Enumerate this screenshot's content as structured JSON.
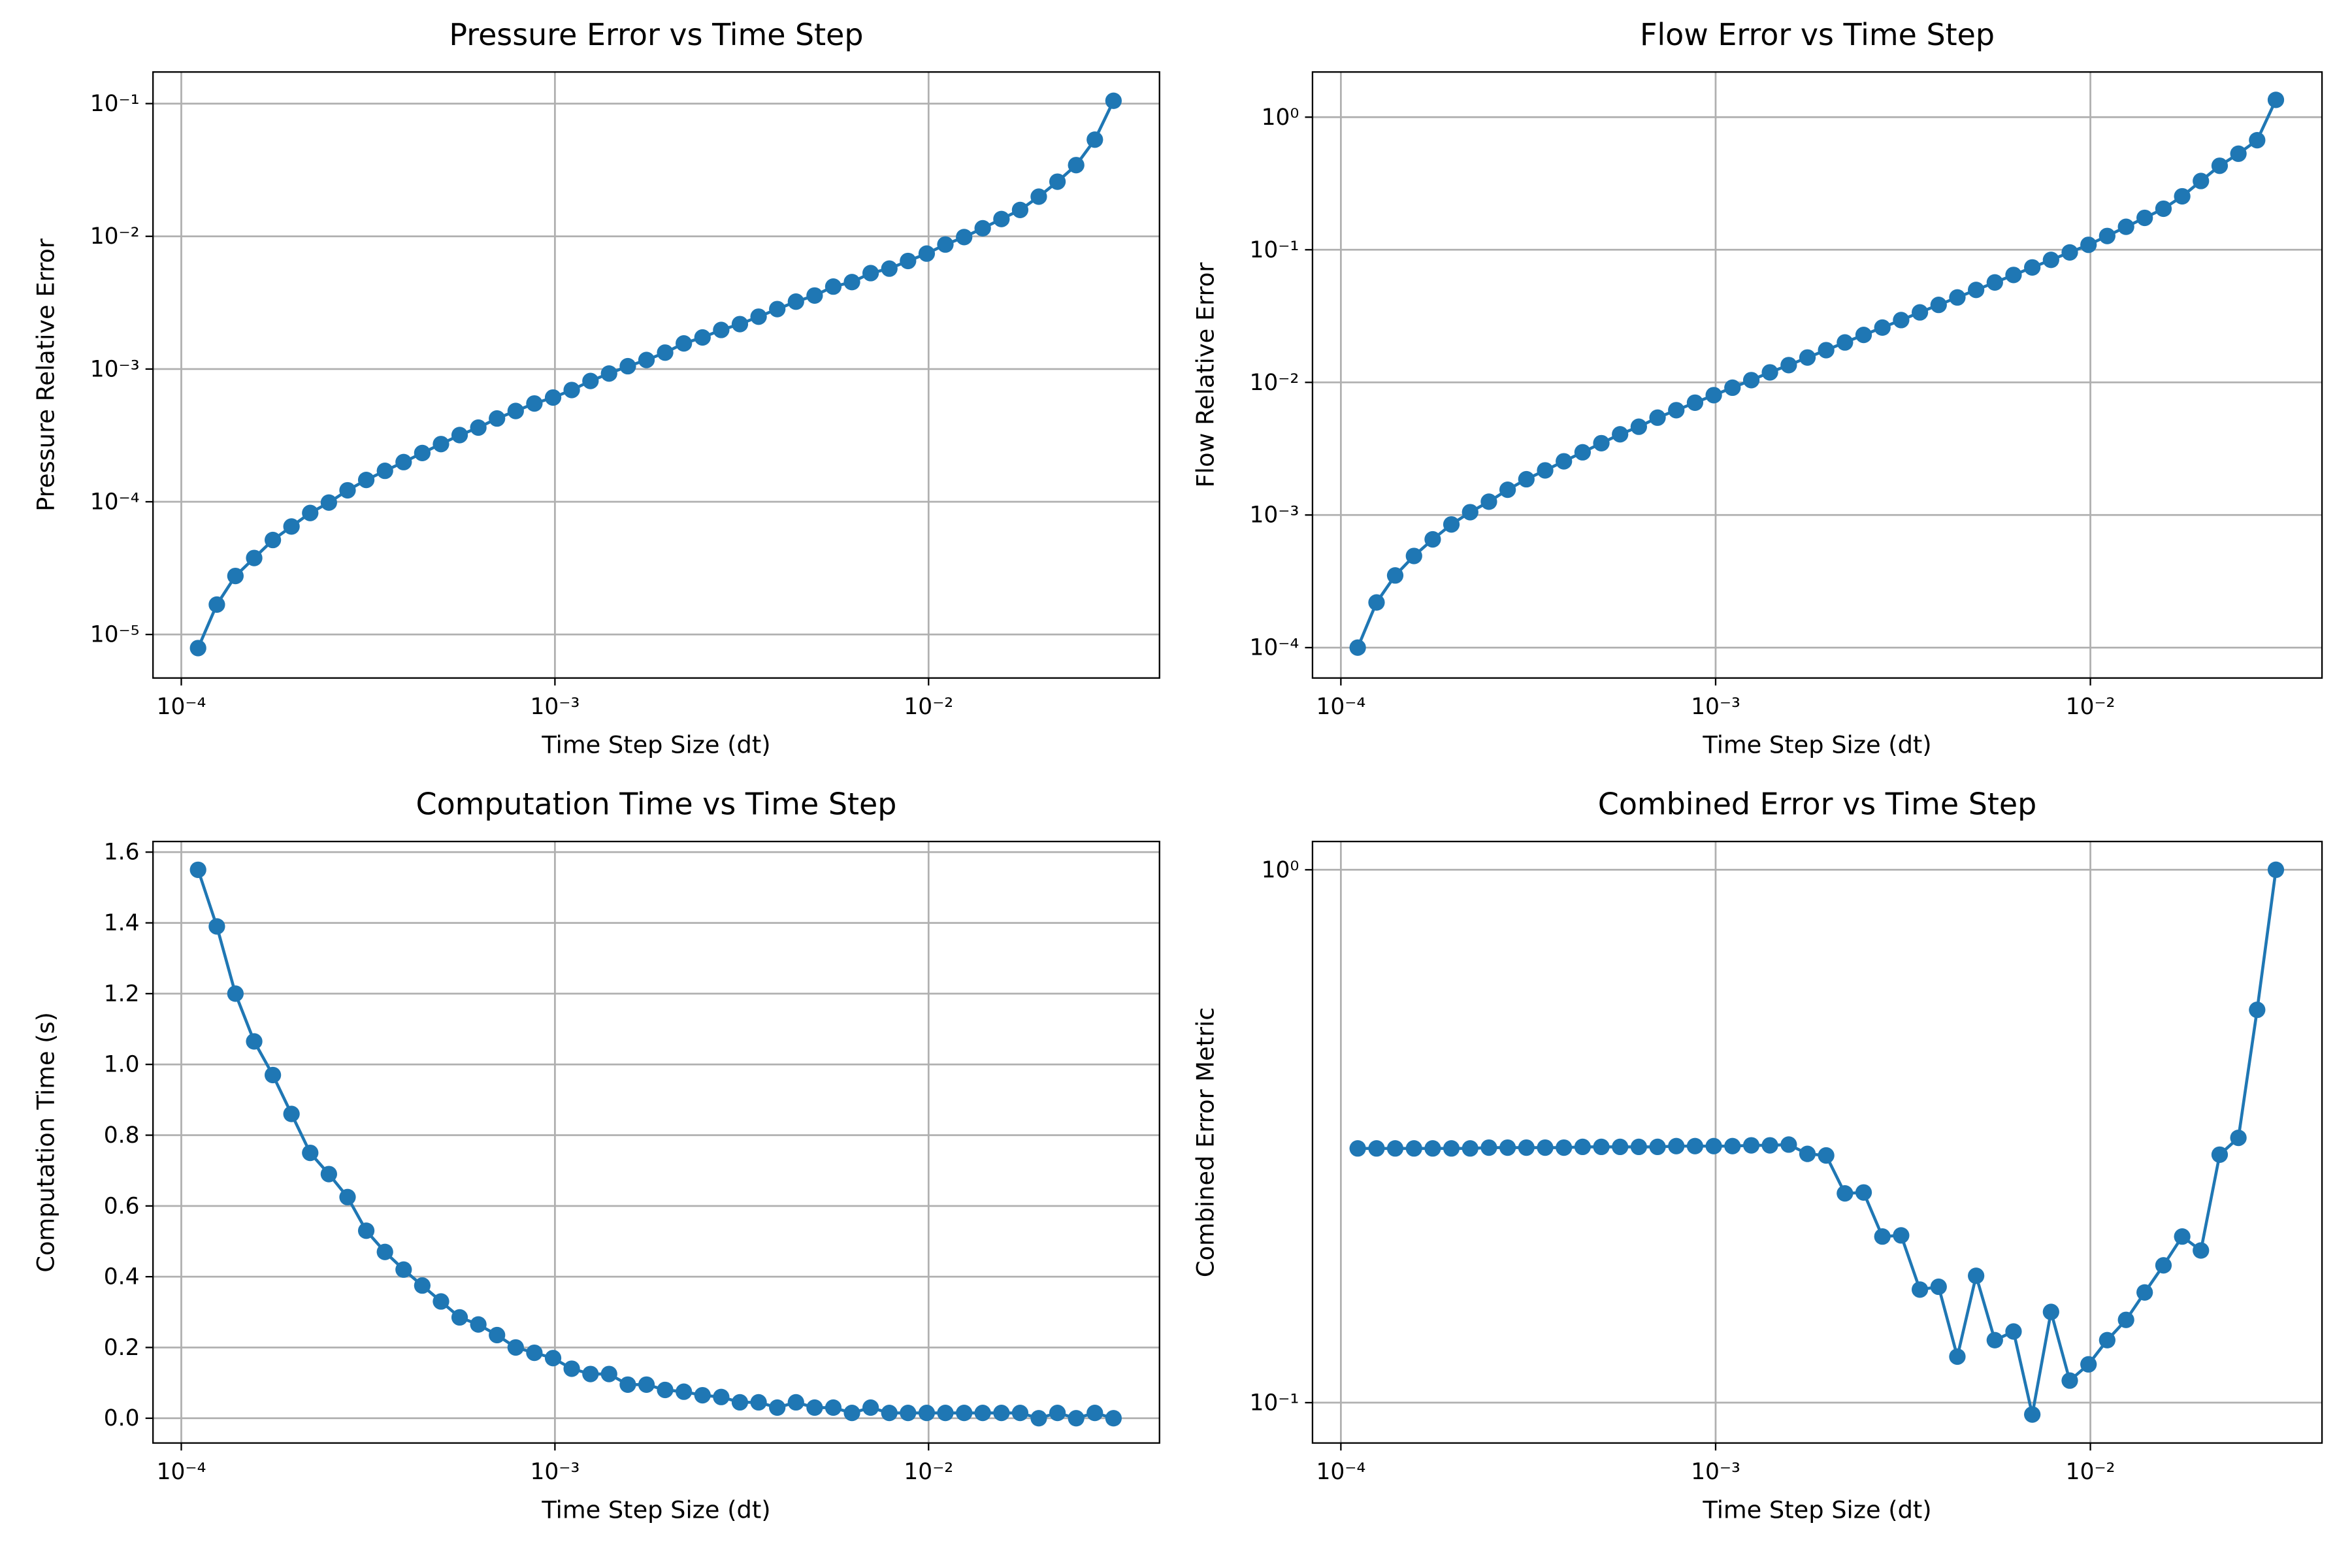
{
  "chart_data": [
    {
      "type": "line",
      "title": "Pressure Error vs Time Step",
      "xlabel": "Time Step Size (dt)",
      "ylabel": "Pressure Relative Error",
      "xscale": "log",
      "yscale": "log",
      "grid": true,
      "marker": "o",
      "x": [
        0.0001109,
        0.0001245,
        0.0001396,
        0.0001567,
        0.0001758,
        0.0001972,
        0.0002213,
        0.0002483,
        0.0002786,
        0.0003126,
        0.0003508,
        0.0003936,
        0.0004416,
        0.0004955,
        0.0005559,
        0.0006237,
        0.0006998,
        0.0007852,
        0.000881,
        0.0009886,
        0.001109,
        0.001245,
        0.001396,
        0.001567,
        0.001758,
        0.001972,
        0.002213,
        0.002483,
        0.002786,
        0.003126,
        0.003508,
        0.003936,
        0.004416,
        0.004955,
        0.005559,
        0.006237,
        0.006998,
        0.007852,
        0.00881,
        0.009886,
        0.01109,
        0.01245,
        0.01396,
        0.01567,
        0.01758,
        0.01972,
        0.02213,
        0.02483,
        0.02786,
        0.03126
      ],
      "series": [
        {
          "color": "#1f77b4",
          "values": [
            7.9e-06,
            1.68e-05,
            2.76e-05,
            3.77e-05,
            5.15e-05,
            6.51e-05,
            8.23e-05,
            9.86e-05,
            0.000122,
            0.000146,
            0.000171,
            0.000199,
            0.000233,
            0.000272,
            0.000318,
            0.000362,
            0.000424,
            0.000483,
            0.00055,
            0.00061,
            0.000695,
            0.000813,
            0.000925,
            0.00105,
            0.00117,
            0.00133,
            0.00156,
            0.00173,
            0.00197,
            0.00218,
            0.00248,
            0.00283,
            0.00322,
            0.00358,
            0.00418,
            0.00452,
            0.00528,
            0.00571,
            0.00652,
            0.00741,
            0.00867,
            0.00987,
            0.0115,
            0.0135,
            0.0158,
            0.0199,
            0.0258,
            0.0344,
            0.0535,
            0.105
          ]
        }
      ],
      "xlim": [
        8.4e-05,
        0.0415
      ],
      "ylim": [
        4.7e-06,
        0.173
      ],
      "xticks": [
        {
          "value": 0.0001,
          "label": "10⁻⁴"
        },
        {
          "value": 0.001,
          "label": "10⁻³"
        },
        {
          "value": 0.01,
          "label": "10⁻²"
        }
      ],
      "yticks": [
        {
          "value": 1e-05,
          "label": "10⁻⁵"
        },
        {
          "value": 0.0001,
          "label": "10⁻⁴"
        },
        {
          "value": 0.001,
          "label": "10⁻³"
        },
        {
          "value": 0.01,
          "label": "10⁻²"
        },
        {
          "value": 0.1,
          "label": "10⁻¹"
        }
      ]
    },
    {
      "type": "line",
      "title": "Flow Error vs Time Step",
      "xlabel": "Time Step Size (dt)",
      "ylabel": "Flow Relative Error",
      "xscale": "log",
      "yscale": "log",
      "grid": true,
      "marker": "o",
      "x": [
        0.0001109,
        0.0001245,
        0.0001396,
        0.0001567,
        0.0001758,
        0.0001972,
        0.0002213,
        0.0002483,
        0.0002786,
        0.0003126,
        0.0003508,
        0.0003936,
        0.0004416,
        0.0004955,
        0.0005559,
        0.0006237,
        0.0006998,
        0.0007852,
        0.000881,
        0.0009886,
        0.001109,
        0.001245,
        0.001396,
        0.001567,
        0.001758,
        0.001972,
        0.002213,
        0.002483,
        0.002786,
        0.003126,
        0.003508,
        0.003936,
        0.004416,
        0.004955,
        0.005559,
        0.006237,
        0.006998,
        0.007852,
        0.00881,
        0.009886,
        0.01109,
        0.01245,
        0.01396,
        0.01567,
        0.01758,
        0.01972,
        0.02213,
        0.02483,
        0.02786,
        0.03126
      ],
      "series": [
        {
          "color": "#1f77b4",
          "values": [
            0.0001,
            0.000219,
            0.00035,
            0.000491,
            0.000655,
            0.000849,
            0.00105,
            0.00126,
            0.00155,
            0.00186,
            0.00217,
            0.00254,
            0.00297,
            0.00348,
            0.00406,
            0.00463,
            0.00542,
            0.00617,
            0.00703,
            0.00801,
            0.00912,
            0.0104,
            0.0119,
            0.0135,
            0.0154,
            0.0175,
            0.02,
            0.0228,
            0.0259,
            0.0295,
            0.0337,
            0.0384,
            0.0437,
            0.0498,
            0.0567,
            0.0646,
            0.0736,
            0.0839,
            0.0955,
            0.109,
            0.127,
            0.149,
            0.174,
            0.204,
            0.253,
            0.33,
            0.43,
            0.53,
            0.67,
            1.35
          ]
        }
      ],
      "xlim": [
        8.4e-05,
        0.0415
      ],
      "ylim": [
        5.9e-05,
        2.19
      ],
      "xticks": [
        {
          "value": 0.0001,
          "label": "10⁻⁴"
        },
        {
          "value": 0.001,
          "label": "10⁻³"
        },
        {
          "value": 0.01,
          "label": "10⁻²"
        }
      ],
      "yticks": [
        {
          "value": 0.0001,
          "label": "10⁻⁴"
        },
        {
          "value": 0.001,
          "label": "10⁻³"
        },
        {
          "value": 0.01,
          "label": "10⁻²"
        },
        {
          "value": 0.1,
          "label": "10⁻¹"
        },
        {
          "value": 1,
          "label": "10⁰"
        }
      ]
    },
    {
      "type": "line",
      "title": "Computation Time vs Time Step",
      "xlabel": "Time Step Size (dt)",
      "ylabel": "Computation Time (s)",
      "xscale": "log",
      "yscale": "linear",
      "grid": true,
      "marker": "o",
      "x": [
        0.0001109,
        0.0001245,
        0.0001396,
        0.0001567,
        0.0001758,
        0.0001972,
        0.0002213,
        0.0002483,
        0.0002786,
        0.0003126,
        0.0003508,
        0.0003936,
        0.0004416,
        0.0004955,
        0.0005559,
        0.0006237,
        0.0006998,
        0.0007852,
        0.000881,
        0.0009886,
        0.001109,
        0.001245,
        0.001396,
        0.001567,
        0.001758,
        0.001972,
        0.002213,
        0.002483,
        0.002786,
        0.003126,
        0.003508,
        0.003936,
        0.004416,
        0.004955,
        0.005559,
        0.006237,
        0.006998,
        0.007852,
        0.00881,
        0.009886,
        0.01109,
        0.01245,
        0.01396,
        0.01567,
        0.01758,
        0.01972,
        0.02213,
        0.02483,
        0.02786,
        0.03126
      ],
      "series": [
        {
          "color": "#1f77b4",
          "values": [
            1.55,
            1.39,
            1.2,
            1.065,
            0.97,
            0.86,
            0.75,
            0.69,
            0.625,
            0.53,
            0.47,
            0.42,
            0.375,
            0.33,
            0.285,
            0.265,
            0.235,
            0.2,
            0.185,
            0.17,
            0.14,
            0.125,
            0.125,
            0.095,
            0.095,
            0.08,
            0.075,
            0.065,
            0.06,
            0.045,
            0.045,
            0.03,
            0.045,
            0.03,
            0.03,
            0.015,
            0.03,
            0.015,
            0.015,
            0.015,
            0.015,
            0.015,
            0.015,
            0.015,
            0.015,
            0,
            0.015,
            0,
            0.015,
            0
          ]
        }
      ],
      "xlim": [
        8.4e-05,
        0.0415
      ],
      "ylim": [
        -0.07,
        1.63
      ],
      "xticks": [
        {
          "value": 0.0001,
          "label": "10⁻⁴"
        },
        {
          "value": 0.001,
          "label": "10⁻³"
        },
        {
          "value": 0.01,
          "label": "10⁻²"
        }
      ],
      "yticks": [
        {
          "value": 0,
          "label": "0.0"
        },
        0.2,
        0.4,
        0.6,
        0.8,
        {
          "value": 1,
          "label": "1.0"
        },
        1.2,
        1.4,
        1.6
      ]
    },
    {
      "type": "line",
      "title": "Combined Error vs Time Step",
      "xlabel": "Time Step Size (dt)",
      "ylabel": "Combined Error Metric",
      "xscale": "log",
      "yscale": "log",
      "grid": true,
      "marker": "o",
      "x": [
        0.0001109,
        0.0001245,
        0.0001396,
        0.0001567,
        0.0001758,
        0.0001972,
        0.0002213,
        0.0002483,
        0.0002786,
        0.0003126,
        0.0003508,
        0.0003936,
        0.0004416,
        0.0004955,
        0.0005559,
        0.0006237,
        0.0006998,
        0.0007852,
        0.000881,
        0.0009886,
        0.001109,
        0.001245,
        0.001396,
        0.001567,
        0.001758,
        0.001972,
        0.002213,
        0.002483,
        0.002786,
        0.003126,
        0.003508,
        0.003936,
        0.004416,
        0.004955,
        0.005559,
        0.006237,
        0.006998,
        0.007852,
        0.00881,
        0.009886,
        0.01109,
        0.01245,
        0.01396,
        0.01567,
        0.01758,
        0.01972,
        0.02213,
        0.02483,
        0.02786,
        0.03126
      ],
      "series": [
        {
          "color": "#1f77b4",
          "values": [
            0.3,
            0.3,
            0.3,
            0.3,
            0.3,
            0.3,
            0.3,
            0.301,
            0.301,
            0.301,
            0.301,
            0.301,
            0.302,
            0.302,
            0.302,
            0.302,
            0.302,
            0.303,
            0.303,
            0.303,
            0.303,
            0.304,
            0.304,
            0.305,
            0.293,
            0.291,
            0.247,
            0.248,
            0.205,
            0.206,
            0.163,
            0.165,
            0.122,
            0.173,
            0.131,
            0.136,
            0.095,
            0.148,
            0.11,
            0.118,
            0.131,
            0.143,
            0.161,
            0.181,
            0.205,
            0.193,
            0.292,
            0.314,
            0.546,
            1.0
          ]
        }
      ],
      "xlim": [
        8.4e-05,
        0.0415
      ],
      "ylim": [
        0.084,
        1.13
      ],
      "xticks": [
        {
          "value": 0.0001,
          "label": "10⁻⁴"
        },
        {
          "value": 0.001,
          "label": "10⁻³"
        },
        {
          "value": 0.01,
          "label": "10⁻²"
        }
      ],
      "yticks": [
        {
          "value": 0.1,
          "label": "10⁻¹"
        },
        {
          "value": 1,
          "label": "10⁰"
        }
      ]
    }
  ]
}
